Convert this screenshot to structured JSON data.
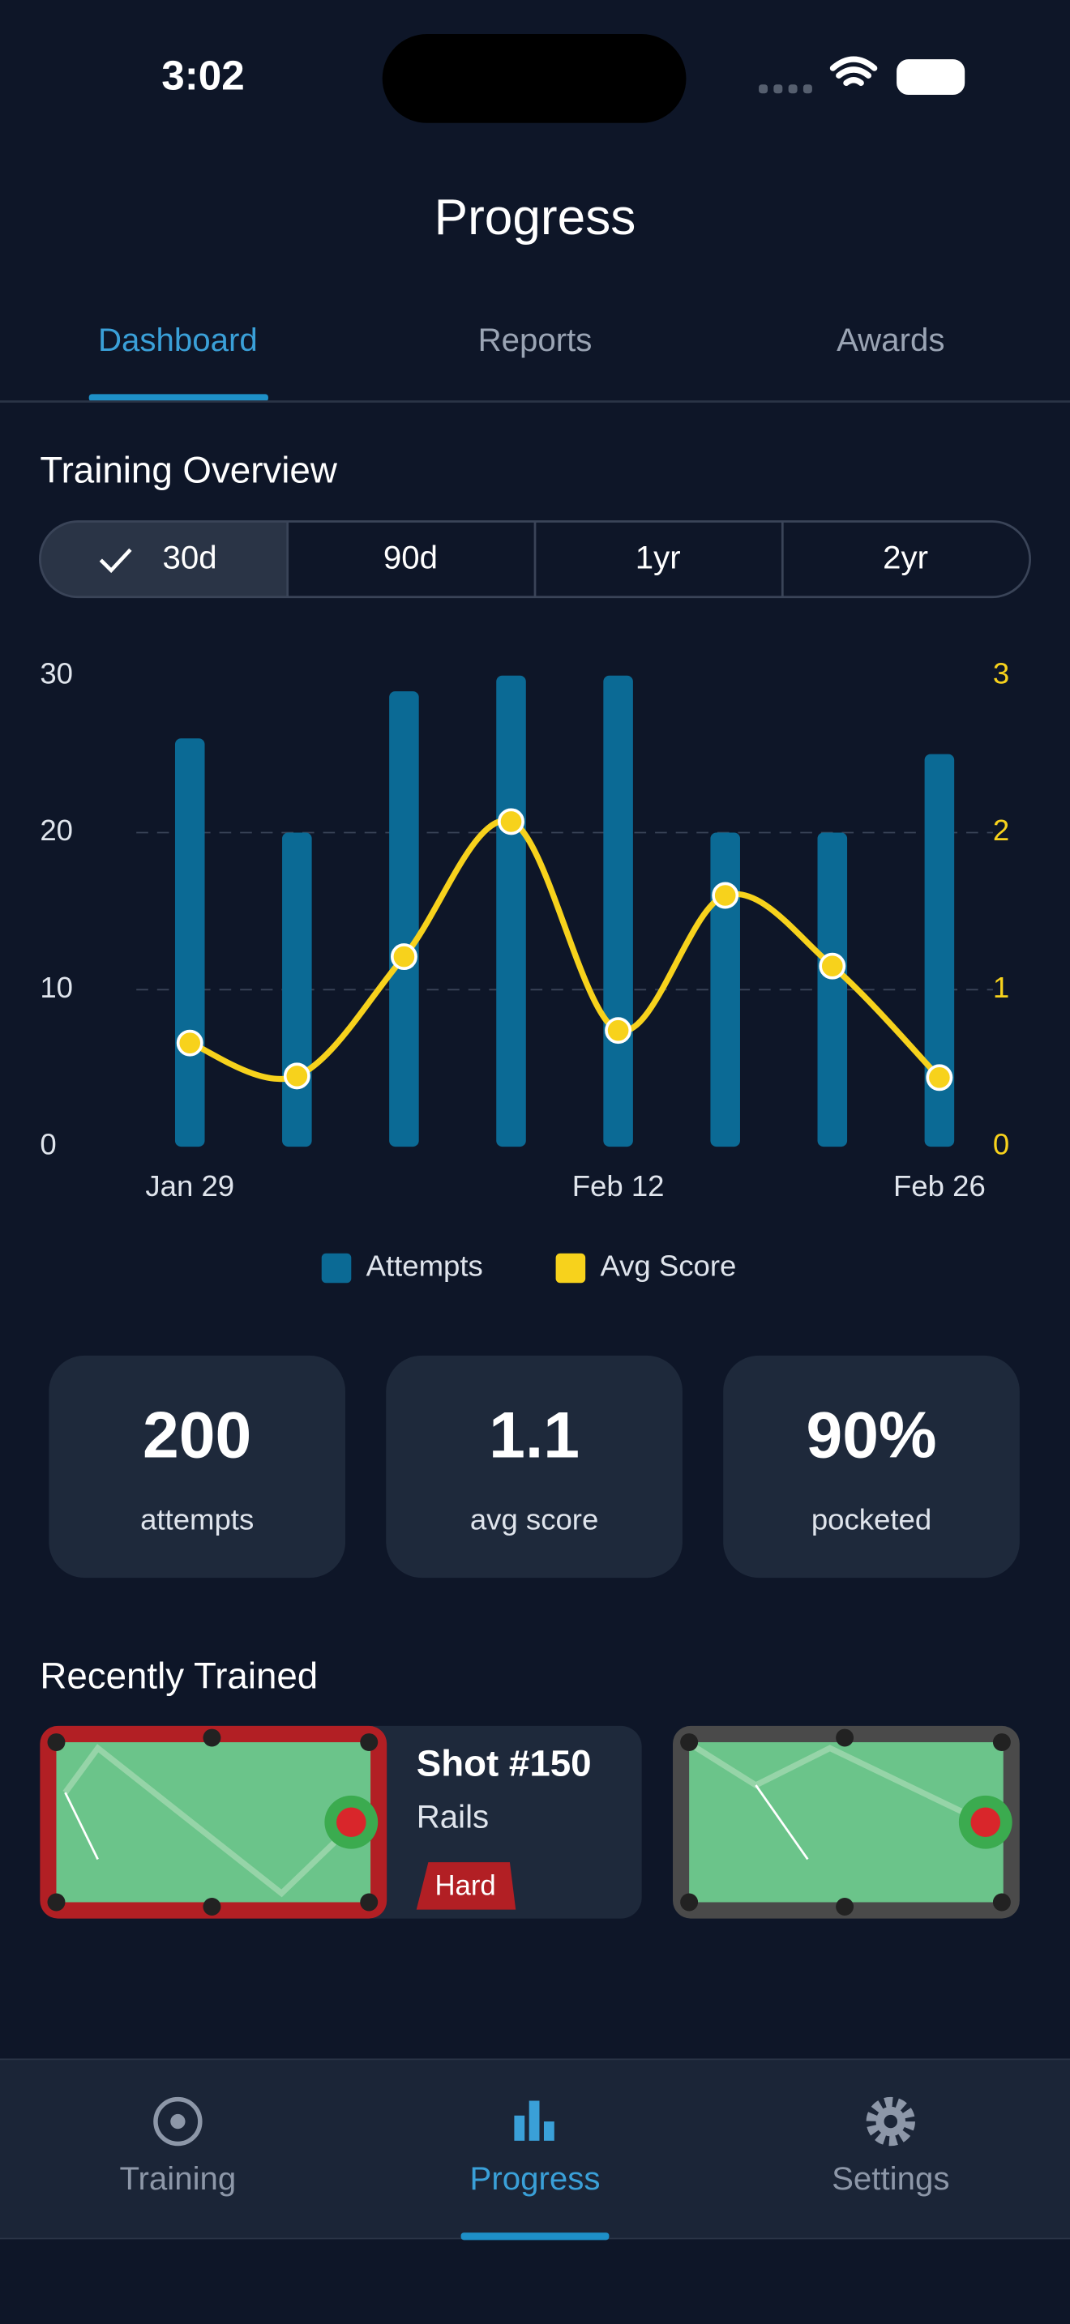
{
  "status_bar": {
    "time": "3:02"
  },
  "header": {
    "title": "Progress"
  },
  "tabs": [
    "Dashboard",
    "Reports",
    "Awards"
  ],
  "section_title": "Training Overview",
  "ranges": [
    "30d",
    "90d",
    "1yr",
    "2yr"
  ],
  "chart_data": {
    "type": "bar",
    "categories": [
      "Jan 29",
      null,
      null,
      null,
      "Feb 12",
      null,
      null,
      "Feb 26"
    ],
    "series": [
      {
        "name": "Attempts",
        "color": "#0b6a95",
        "values": [
          26,
          20,
          29,
          30,
          30,
          20,
          20,
          25
        ]
      },
      {
        "name": "Avg Score",
        "color": "#f7d21c",
        "type": "line",
        "axis": "y2",
        "values": [
          0.66,
          0.45,
          1.21,
          2.07,
          0.74,
          1.6,
          1.15,
          0.44
        ]
      }
    ],
    "ylim": [
      0,
      30
    ],
    "yticks": [
      0,
      10,
      20,
      30
    ],
    "y2lim": [
      0,
      3
    ],
    "y2ticks": [
      0,
      1,
      2,
      3
    ],
    "grid": true
  },
  "stats": [
    {
      "value": "200",
      "label": "attempts"
    },
    {
      "value": "1.1",
      "label": "avg score"
    },
    {
      "value": "90%",
      "label": "pocketed"
    }
  ],
  "recent": {
    "title": "Recently Trained",
    "items": [
      {
        "title": "Shot #150",
        "category": "Rails",
        "difficulty": "Hard"
      }
    ]
  },
  "nav": [
    "Training",
    "Progress",
    "Settings"
  ]
}
